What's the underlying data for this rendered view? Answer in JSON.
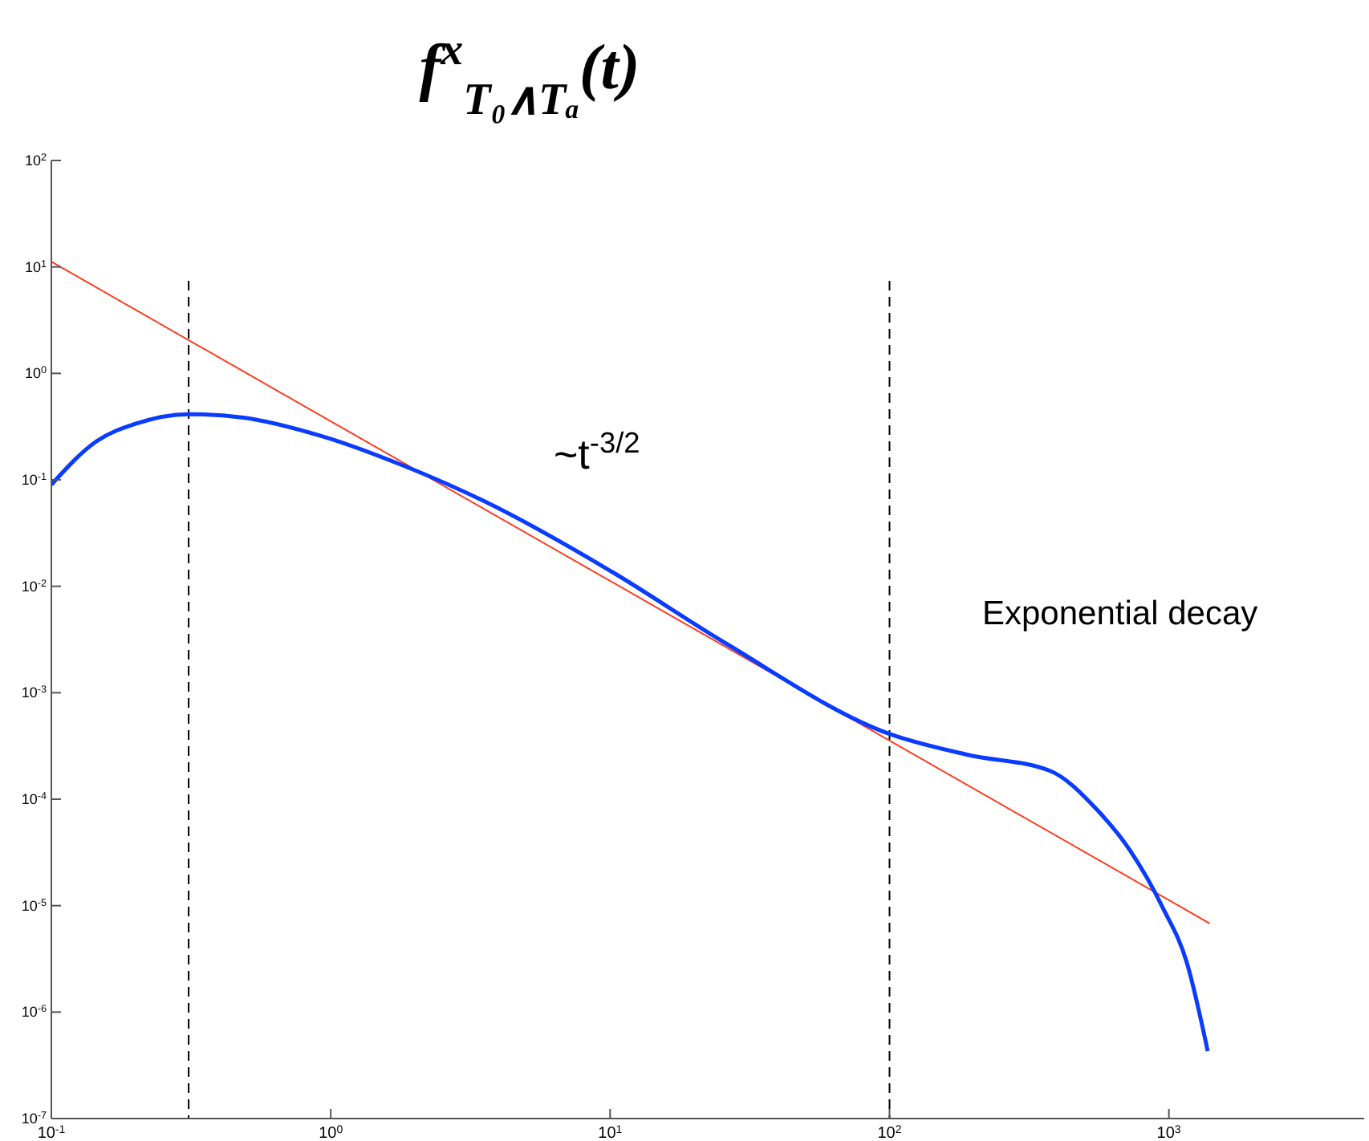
{
  "chart_data": {
    "type": "line",
    "title": "f$^{x}$$_{T₀∧Tₐ}$(t)",
    "log": "xy",
    "grid": false,
    "xlim": [
      0.1,
      5000
    ],
    "ylim": [
      1e-07,
      100
    ],
    "xticks": [
      {
        "value": 0.1,
        "label": "10$^{-1}$"
      },
      {
        "value": 1,
        "label": "10$^{0}$"
      },
      {
        "value": 10,
        "label": "10$^{1}$"
      },
      {
        "value": 100,
        "label": "10$^{2}$"
      },
      {
        "value": 1000,
        "label": "10$^{3}$"
      }
    ],
    "yticks": [
      {
        "value": 1e-07,
        "label": "10$^{-7}$"
      },
      {
        "value": 1e-06,
        "label": "10$^{-6}$"
      },
      {
        "value": 1e-05,
        "label": "10$^{-5}$"
      },
      {
        "value": 0.0001,
        "label": "10$^{-4}$"
      },
      {
        "value": 0.001,
        "label": "10$^{-3}$"
      },
      {
        "value": 0.01,
        "label": "10$^{-2}$"
      },
      {
        "value": 0.1,
        "label": "10$^{-1}$"
      },
      {
        "value": 1,
        "label": "10$^{0}$"
      },
      {
        "value": 10,
        "label": "10$^{1}$"
      },
      {
        "value": 100,
        "label": "10$^{2}$"
      }
    ],
    "series": [
      {
        "color": "#ff3b1f",
        "line_style": "solid",
        "x": [
          0.1,
          1400
        ],
        "values": [
          11.2,
          6.8e-06
        ]
      },
      {
        "color": "#0a3cff",
        "line_style": "solid",
        "x": [
          0.1,
          0.145,
          0.2,
          0.31,
          0.48,
          0.94,
          1.82,
          3.54,
          10,
          26,
          100,
          192,
          373,
          557,
          726,
          948,
          1160,
          1377
        ],
        "values": [
          0.09,
          0.23,
          0.336,
          0.414,
          0.386,
          0.255,
          0.136,
          0.063,
          0.014,
          0.0029,
          0.00041,
          0.00026,
          0.000186,
          7.8e-05,
          3.3e-05,
          9.7e-06,
          2.9e-06,
          4.3e-07
        ]
      }
    ],
    "ref_lines": [
      {
        "axis": "x",
        "value": 0.31,
        "line_style": "dashed",
        "color": "#000000"
      },
      {
        "axis": "x",
        "value": 100,
        "line_style": "dashed",
        "color": "#000000"
      }
    ],
    "annotations": [
      "~t$^{-3/2}$",
      "Exponential decay"
    ]
  }
}
